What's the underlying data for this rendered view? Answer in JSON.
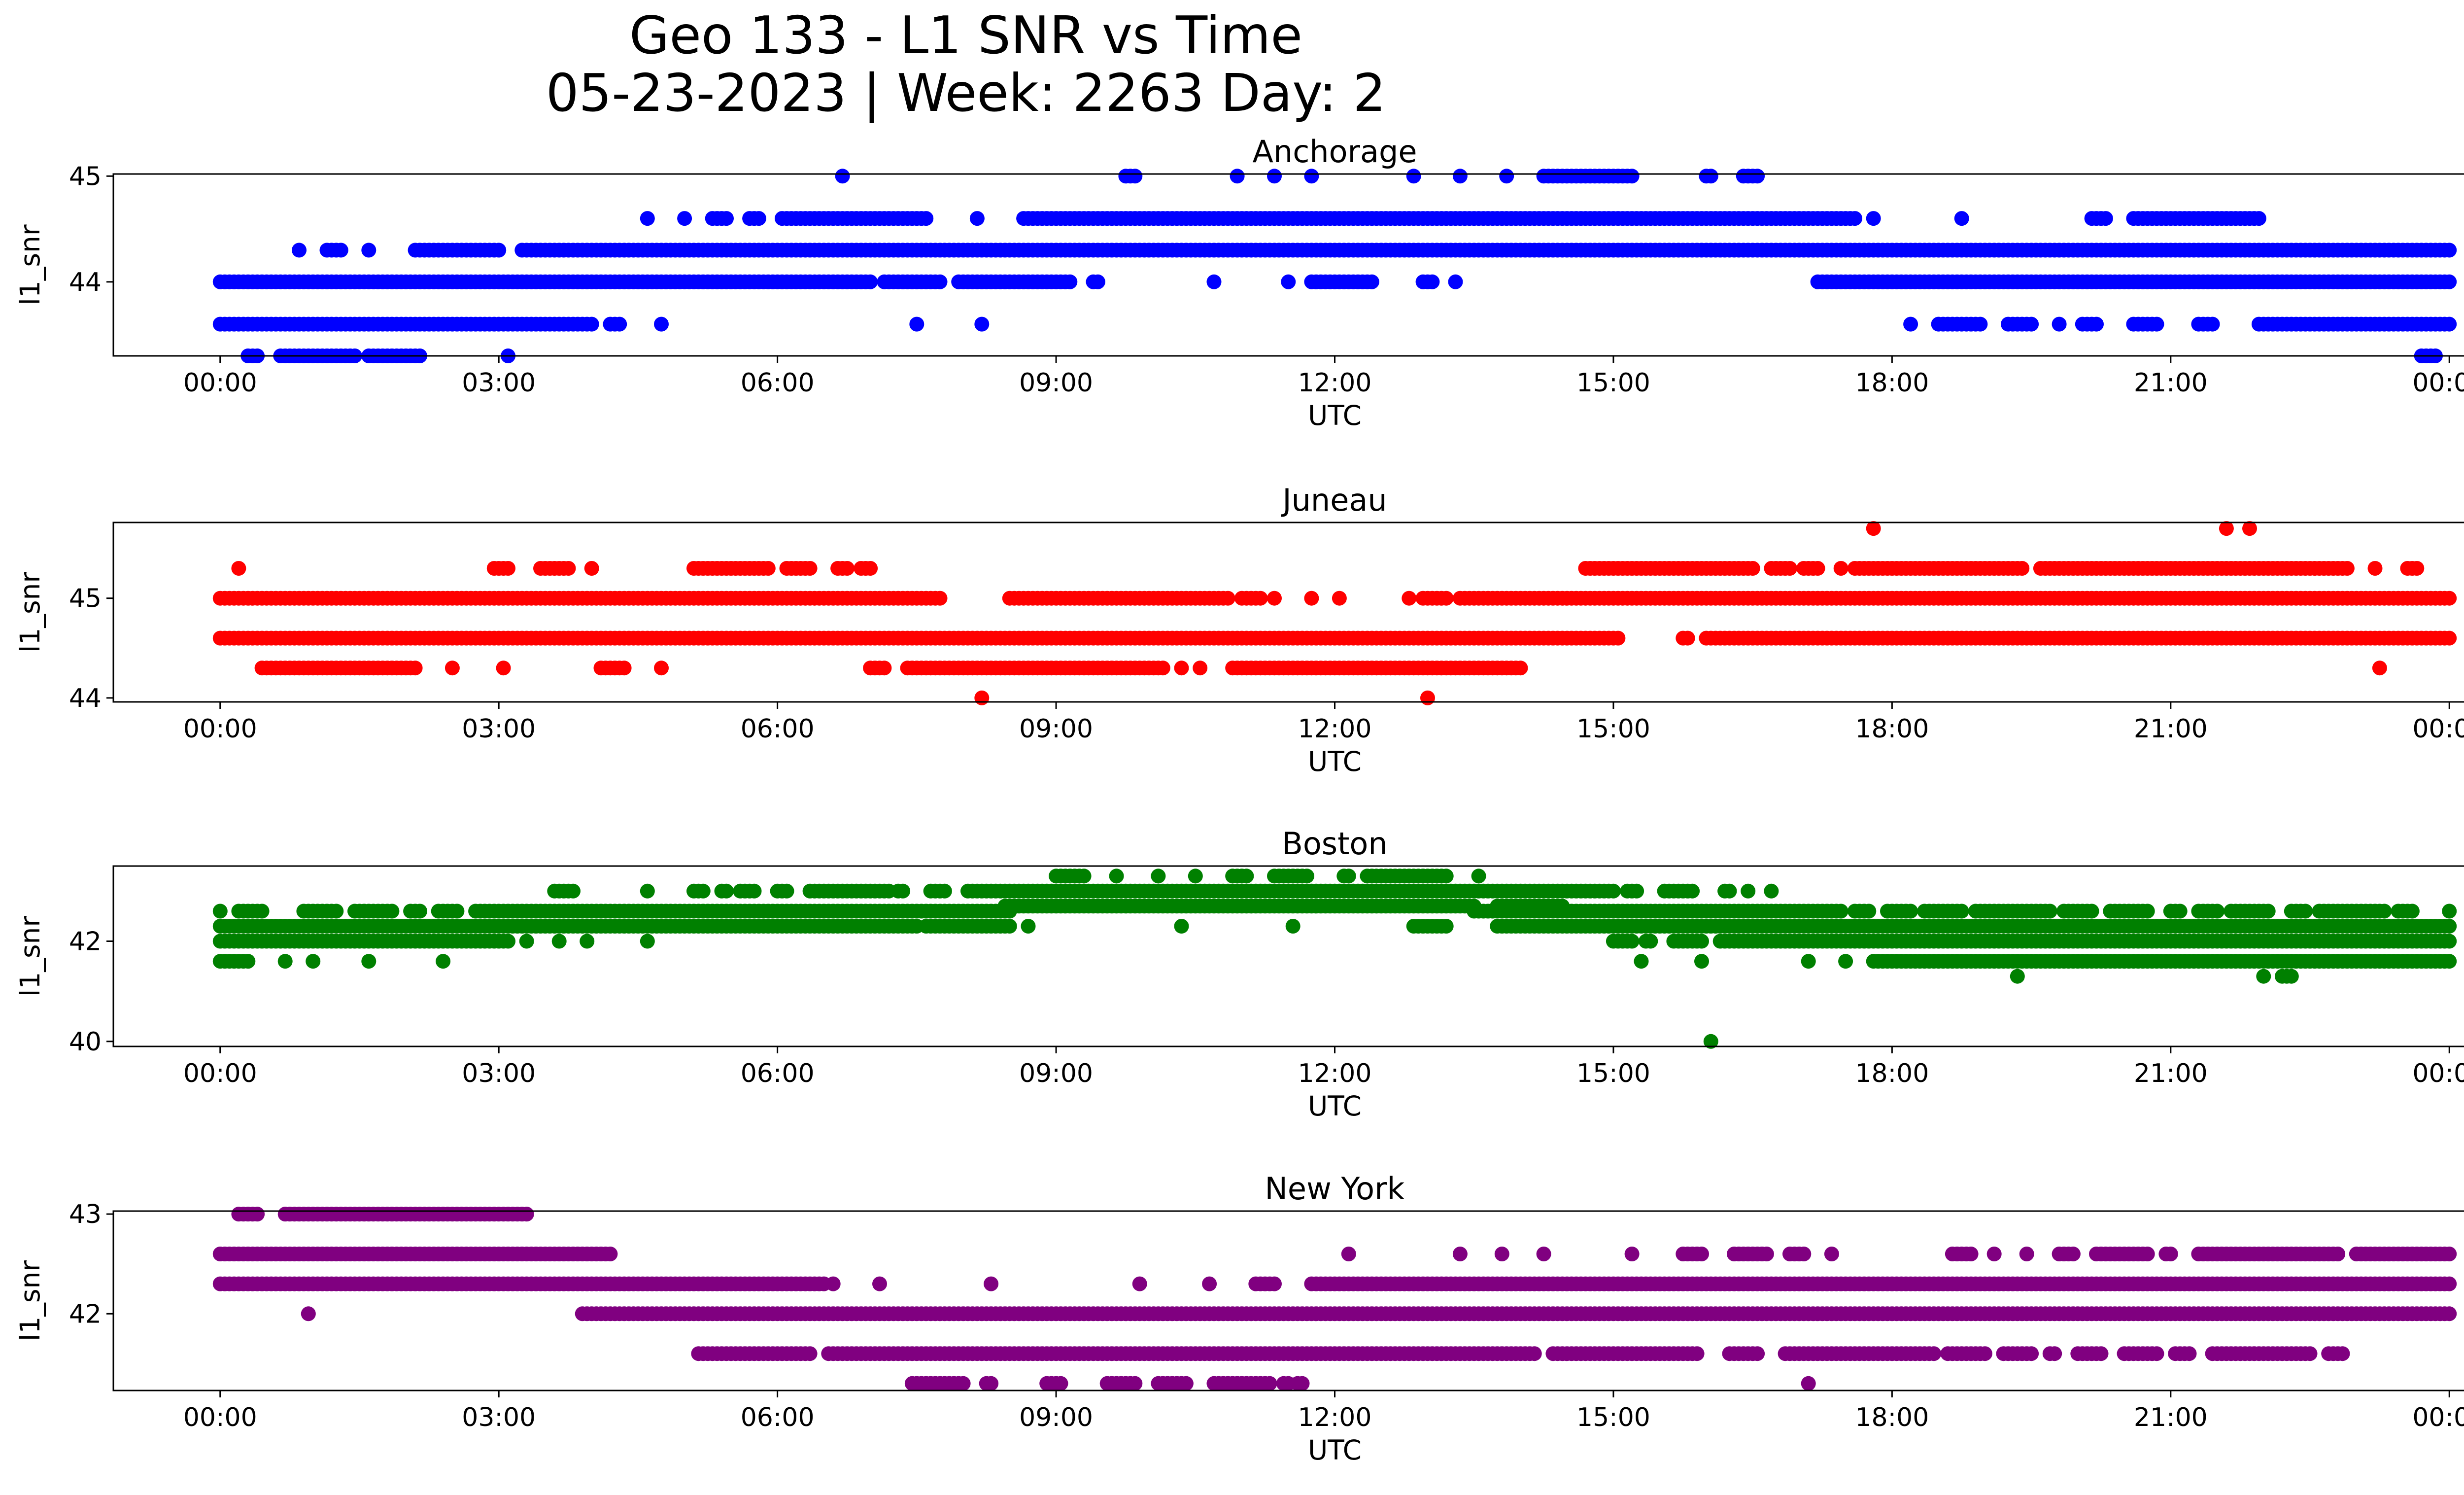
{
  "figure": {
    "title_line1": "Geo 133 - L1 SNR vs Time",
    "title_line2": "05-23-2023 | Week: 2263 Day: 2"
  },
  "chart_data": [
    {
      "type": "scatter",
      "title": "Anchorage",
      "xlabel": "UTC",
      "ylabel": "l1_snr",
      "color": "#0000ff",
      "x_unit": "hours UTC",
      "xlim": [
        -1.15,
        25.15
      ],
      "ylim": [
        43.3,
        45.02
      ],
      "x_ticks": [
        "00:00",
        "03:00",
        "06:00",
        "09:00",
        "12:00",
        "15:00",
        "18:00",
        "21:00",
        "00:00"
      ],
      "y_ticks": [
        44,
        45
      ],
      "levels": [
        {
          "y": 45.0,
          "segments": [
            [
              6.7,
              6.7
            ],
            [
              9.75,
              9.85
            ],
            [
              10.95,
              10.95
            ],
            [
              11.35,
              11.35
            ],
            [
              11.75,
              11.75
            ],
            [
              12.85,
              12.85
            ],
            [
              13.35,
              13.35
            ],
            [
              13.85,
              13.85
            ],
            [
              14.25,
              15.2
            ],
            [
              16.0,
              16.05
            ],
            [
              16.4,
              16.55
            ]
          ]
        },
        {
          "y": 44.6,
          "segments": [
            [
              4.6,
              4.6
            ],
            [
              5.0,
              5.0
            ],
            [
              5.3,
              5.45
            ],
            [
              5.7,
              5.8
            ],
            [
              6.05,
              7.6
            ],
            [
              8.15,
              8.15
            ],
            [
              8.65,
              17.6
            ],
            [
              17.8,
              17.8
            ],
            [
              18.75,
              18.75
            ],
            [
              20.15,
              20.3
            ],
            [
              20.6,
              21.95
            ]
          ]
        },
        {
          "y": 44.3,
          "segments": [
            [
              0.85,
              0.85
            ],
            [
              1.15,
              1.3
            ],
            [
              1.6,
              1.6
            ],
            [
              2.1,
              3.0
            ],
            [
              3.25,
              24.0
            ]
          ]
        },
        {
          "y": 44.0,
          "segments": [
            [
              0.0,
              7.0
            ],
            [
              7.15,
              7.75
            ],
            [
              7.95,
              9.15
            ],
            [
              9.4,
              9.45
            ],
            [
              10.7,
              10.7
            ],
            [
              11.5,
              11.5
            ],
            [
              11.75,
              12.4
            ],
            [
              12.95,
              13.05
            ],
            [
              13.3,
              13.3
            ],
            [
              17.2,
              24.0
            ]
          ]
        },
        {
          "y": 43.6,
          "segments": [
            [
              0.0,
              4.0
            ],
            [
              4.2,
              4.3
            ],
            [
              4.75,
              4.75
            ],
            [
              7.5,
              7.5
            ],
            [
              8.2,
              8.2
            ],
            [
              18.2,
              18.2
            ],
            [
              18.5,
              18.95
            ],
            [
              19.25,
              19.5
            ],
            [
              19.8,
              19.8
            ],
            [
              20.05,
              20.2
            ],
            [
              20.6,
              20.85
            ],
            [
              21.3,
              21.45
            ],
            [
              21.95,
              24.0
            ]
          ]
        },
        {
          "y": 43.3,
          "segments": [
            [
              0.3,
              0.4
            ],
            [
              0.65,
              1.45
            ],
            [
              1.6,
              2.15
            ],
            [
              3.1,
              3.1
            ],
            [
              23.7,
              23.85
            ]
          ]
        }
      ]
    },
    {
      "type": "scatter",
      "title": "Juneau",
      "xlabel": "UTC",
      "ylabel": "l1_snr",
      "color": "#ff0000",
      "x_unit": "hours UTC",
      "xlim": [
        -1.15,
        25.15
      ],
      "ylim": [
        43.96,
        45.76
      ],
      "x_ticks": [
        "00:00",
        "03:00",
        "06:00",
        "09:00",
        "12:00",
        "15:00",
        "18:00",
        "21:00",
        "00:00"
      ],
      "y_ticks": [
        44,
        45
      ],
      "levels": [
        {
          "y": 45.7,
          "segments": [
            [
              17.8,
              17.8
            ],
            [
              21.6,
              21.6
            ],
            [
              21.85,
              21.85
            ]
          ]
        },
        {
          "y": 45.3,
          "segments": [
            [
              0.2,
              0.2
            ],
            [
              2.95,
              3.1
            ],
            [
              3.45,
              3.75
            ],
            [
              4.0,
              4.0
            ],
            [
              5.1,
              5.9
            ],
            [
              6.1,
              6.35
            ],
            [
              6.65,
              6.75
            ],
            [
              6.9,
              7.0
            ],
            [
              14.7,
              16.5
            ],
            [
              16.7,
              16.9
            ],
            [
              17.05,
              17.2
            ],
            [
              17.45,
              17.45
            ],
            [
              17.6,
              19.4
            ],
            [
              19.6,
              22.9
            ],
            [
              23.2,
              23.2
            ],
            [
              23.55,
              23.65
            ]
          ]
        },
        {
          "y": 45.0,
          "segments": [
            [
              0.0,
              7.75
            ],
            [
              8.5,
              10.85
            ],
            [
              11.0,
              11.2
            ],
            [
              11.35,
              11.35
            ],
            [
              11.75,
              11.75
            ],
            [
              12.05,
              12.05
            ],
            [
              12.8,
              12.8
            ],
            [
              12.95,
              13.2
            ],
            [
              13.35,
              24.0
            ]
          ]
        },
        {
          "y": 44.6,
          "segments": [
            [
              0.0,
              15.05
            ],
            [
              15.75,
              15.8
            ],
            [
              16.0,
              24.0
            ]
          ]
        },
        {
          "y": 44.3,
          "segments": [
            [
              0.45,
              2.1
            ],
            [
              2.5,
              2.5
            ],
            [
              3.05,
              3.05
            ],
            [
              4.1,
              4.35
            ],
            [
              4.75,
              4.75
            ],
            [
              7.0,
              7.15
            ],
            [
              7.4,
              10.15
            ],
            [
              10.35,
              10.35
            ],
            [
              10.55,
              10.55
            ],
            [
              10.9,
              14.0
            ],
            [
              23.25,
              23.25
            ]
          ]
        },
        {
          "y": 44.0,
          "segments": [
            [
              8.2,
              8.2
            ],
            [
              13.0,
              13.0
            ]
          ]
        }
      ]
    },
    {
      "type": "scatter",
      "title": "Boston",
      "xlabel": "UTC",
      "ylabel": "l1_snr",
      "color": "#008000",
      "x_unit": "hours UTC",
      "xlim": [
        -1.15,
        25.15
      ],
      "ylim": [
        39.9,
        43.5
      ],
      "x_ticks": [
        "00:00",
        "03:00",
        "06:00",
        "09:00",
        "12:00",
        "15:00",
        "18:00",
        "21:00",
        "00:00"
      ],
      "y_ticks": [
        40,
        42
      ],
      "levels": [
        {
          "y": 43.3,
          "segments": [
            [
              9.0,
              9.3
            ],
            [
              9.65,
              9.65
            ],
            [
              10.1,
              10.1
            ],
            [
              10.5,
              10.5
            ],
            [
              10.9,
              11.05
            ],
            [
              11.35,
              11.7
            ],
            [
              12.1,
              12.15
            ],
            [
              12.35,
              13.2
            ],
            [
              13.55,
              13.55
            ]
          ]
        },
        {
          "y": 43.0,
          "segments": [
            [
              3.6,
              3.8
            ],
            [
              4.6,
              4.6
            ],
            [
              5.1,
              5.2
            ],
            [
              5.4,
              5.45
            ],
            [
              5.6,
              5.75
            ],
            [
              6.0,
              6.1
            ],
            [
              6.35,
              7.2
            ],
            [
              7.3,
              7.35
            ],
            [
              7.65,
              7.8
            ],
            [
              8.05,
              15.0
            ],
            [
              15.15,
              15.25
            ],
            [
              15.55,
              15.85
            ],
            [
              16.2,
              16.25
            ],
            [
              16.45,
              16.45
            ],
            [
              16.7,
              16.7
            ]
          ]
        },
        {
          "y": 42.7,
          "segments": [
            [
              8.45,
              13.5
            ],
            [
              13.75,
              14.45
            ]
          ]
        },
        {
          "y": 42.6,
          "segments": [
            [
              0.0,
              0.0
            ],
            [
              0.2,
              0.45
            ],
            [
              0.9,
              1.25
            ],
            [
              1.45,
              1.85
            ],
            [
              2.05,
              2.15
            ],
            [
              2.35,
              2.55
            ],
            [
              2.75,
              8.5
            ],
            [
              13.5,
              17.45
            ],
            [
              17.6,
              17.75
            ],
            [
              17.95,
              18.2
            ],
            [
              18.35,
              18.75
            ],
            [
              18.9,
              19.7
            ],
            [
              19.85,
              20.15
            ],
            [
              20.35,
              20.75
            ],
            [
              21.0,
              21.1
            ],
            [
              21.3,
              21.5
            ],
            [
              21.65,
              22.05
            ],
            [
              22.3,
              22.45
            ],
            [
              22.6,
              23.3
            ],
            [
              23.45,
              23.6
            ],
            [
              24.0,
              24.0
            ]
          ]
        },
        {
          "y": 42.3,
          "segments": [
            [
              0.0,
              7.5
            ],
            [
              7.6,
              8.5
            ],
            [
              8.7,
              8.7
            ],
            [
              10.35,
              10.35
            ],
            [
              11.55,
              11.55
            ],
            [
              12.85,
              13.2
            ],
            [
              13.75,
              24.0
            ]
          ]
        },
        {
          "y": 42.0,
          "segments": [
            [
              0.0,
              3.1
            ],
            [
              3.3,
              3.3
            ],
            [
              3.65,
              3.65
            ],
            [
              3.95,
              3.95
            ],
            [
              4.6,
              4.6
            ],
            [
              15.0,
              15.2
            ],
            [
              15.35,
              15.4
            ],
            [
              15.65,
              15.95
            ],
            [
              16.15,
              24.0
            ]
          ]
        },
        {
          "y": 41.6,
          "segments": [
            [
              0.0,
              0.3
            ],
            [
              0.7,
              0.7
            ],
            [
              1.0,
              1.0
            ],
            [
              1.6,
              1.6
            ],
            [
              2.4,
              2.4
            ],
            [
              15.3,
              15.3
            ],
            [
              15.95,
              15.95
            ],
            [
              17.1,
              17.1
            ],
            [
              17.5,
              17.5
            ],
            [
              17.8,
              24.0
            ]
          ]
        },
        {
          "y": 41.3,
          "segments": [
            [
              19.35,
              19.35
            ],
            [
              22.0,
              22.0
            ],
            [
              22.2,
              22.3
            ]
          ]
        },
        {
          "y": 40.0,
          "segments": [
            [
              16.05,
              16.05
            ]
          ]
        }
      ]
    },
    {
      "type": "scatter",
      "title": "New York",
      "xlabel": "UTC",
      "ylabel": "l1_snr",
      "color": "#800080",
      "x_unit": "hours UTC",
      "xlim": [
        -1.15,
        25.15
      ],
      "ylim": [
        41.23,
        43.03
      ],
      "x_ticks": [
        "00:00",
        "03:00",
        "06:00",
        "09:00",
        "12:00",
        "15:00",
        "18:00",
        "21:00",
        "00:00"
      ],
      "y_ticks": [
        42,
        43
      ],
      "levels": [
        {
          "y": 43.0,
          "segments": [
            [
              0.2,
              0.4
            ],
            [
              0.7,
              3.3
            ]
          ]
        },
        {
          "y": 42.6,
          "segments": [
            [
              0.0,
              4.2
            ],
            [
              12.15,
              12.15
            ],
            [
              13.35,
              13.35
            ],
            [
              13.8,
              13.8
            ],
            [
              14.25,
              14.25
            ],
            [
              15.2,
              15.2
            ],
            [
              15.75,
              15.95
            ],
            [
              16.3,
              16.65
            ],
            [
              16.9,
              17.05
            ],
            [
              17.35,
              17.35
            ],
            [
              18.65,
              18.85
            ],
            [
              19.1,
              19.1
            ],
            [
              19.45,
              19.45
            ],
            [
              19.8,
              19.95
            ],
            [
              20.2,
              20.75
            ],
            [
              20.95,
              21.0
            ],
            [
              21.3,
              22.8
            ],
            [
              23.0,
              24.0
            ]
          ]
        },
        {
          "y": 42.3,
          "segments": [
            [
              0.0,
              6.5
            ],
            [
              6.6,
              6.6
            ],
            [
              7.1,
              7.1
            ],
            [
              8.3,
              8.3
            ],
            [
              9.9,
              9.9
            ],
            [
              10.65,
              10.65
            ],
            [
              11.15,
              11.35
            ],
            [
              11.75,
              24.0
            ]
          ]
        },
        {
          "y": 42.0,
          "segments": [
            [
              0.95,
              0.95
            ],
            [
              3.9,
              24.0
            ]
          ]
        },
        {
          "y": 41.6,
          "segments": [
            [
              5.15,
              6.35
            ],
            [
              6.55,
              12.3
            ],
            [
              12.35,
              14.15
            ],
            [
              14.35,
              15.9
            ],
            [
              16.25,
              16.55
            ],
            [
              16.85,
              18.45
            ],
            [
              18.6,
              19.0
            ],
            [
              19.2,
              19.5
            ],
            [
              19.7,
              19.75
            ],
            [
              20.0,
              20.25
            ],
            [
              20.5,
              20.85
            ],
            [
              21.05,
              21.2
            ],
            [
              21.45,
              22.5
            ],
            [
              22.7,
              22.85
            ]
          ]
        },
        {
          "y": 41.3,
          "segments": [
            [
              7.45,
              8.0
            ],
            [
              8.25,
              8.3
            ],
            [
              8.9,
              9.05
            ],
            [
              9.55,
              9.85
            ],
            [
              10.1,
              10.4
            ],
            [
              10.7,
              11.3
            ],
            [
              11.45,
              11.5
            ],
            [
              11.6,
              11.65
            ],
            [
              17.1,
              17.1
            ]
          ]
        }
      ]
    }
  ]
}
